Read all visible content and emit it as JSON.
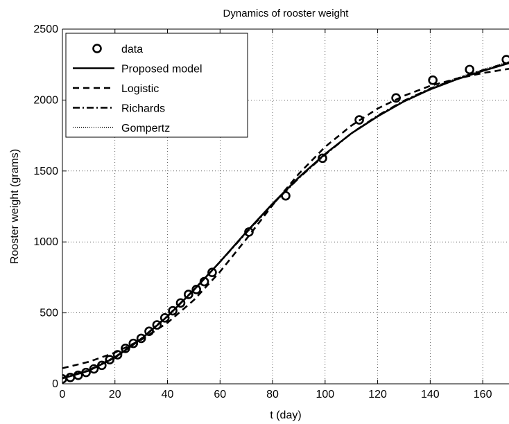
{
  "chart_data": {
    "type": "line",
    "title": "Dynamics of rooster weight",
    "xlabel": "t (day)",
    "ylabel": "Rooster weight (grams)",
    "xlim": [
      0,
      170
    ],
    "ylim": [
      0,
      2500
    ],
    "xticks": [
      0,
      20,
      40,
      60,
      80,
      100,
      120,
      140,
      160
    ],
    "yticks": [
      0,
      500,
      1000,
      1500,
      2000,
      2500
    ],
    "grid": true,
    "legend_position": "top-left",
    "series": [
      {
        "name": "data",
        "style": "markers-circle",
        "x": [
          0,
          3,
          6,
          9,
          12,
          15,
          18,
          21,
          24,
          27,
          30,
          33,
          36,
          39,
          42,
          45,
          48,
          51,
          54,
          57,
          71,
          85,
          99,
          113,
          127,
          141,
          155,
          169
        ],
        "y": [
          35,
          45,
          60,
          80,
          105,
          130,
          170,
          205,
          250,
          285,
          320,
          370,
          415,
          465,
          515,
          570,
          630,
          665,
          720,
          785,
          1070,
          1325,
          1590,
          1860,
          2015,
          2140,
          2215,
          2285
        ]
      },
      {
        "name": "Proposed model",
        "style": "solid",
        "x": [
          0,
          10,
          20,
          30,
          40,
          50,
          60,
          70,
          80,
          90,
          100,
          110,
          120,
          130,
          140,
          150,
          160,
          170
        ],
        "y": [
          38,
          92,
          185,
          315,
          475,
          660,
          860,
          1070,
          1270,
          1455,
          1620,
          1765,
          1885,
          1990,
          2075,
          2145,
          2205,
          2260
        ]
      },
      {
        "name": "Logistic",
        "style": "dashed",
        "x": [
          0,
          10,
          20,
          30,
          40,
          50,
          60,
          70,
          80,
          90,
          100,
          110,
          120,
          130,
          140,
          150,
          160,
          170
        ],
        "y": [
          110,
          155,
          220,
          310,
          430,
          590,
          790,
          1020,
          1260,
          1480,
          1670,
          1820,
          1940,
          2030,
          2100,
          2150,
          2190,
          2220
        ]
      },
      {
        "name": "Richards",
        "style": "dashdot",
        "x": [
          0,
          10,
          20,
          30,
          40,
          50,
          60,
          70,
          80,
          90,
          100,
          110,
          120,
          130,
          140,
          150,
          160,
          170
        ],
        "y": [
          42,
          95,
          188,
          318,
          478,
          662,
          860,
          1065,
          1265,
          1450,
          1615,
          1765,
          1890,
          1995,
          2080,
          2150,
          2210,
          2265
        ]
      },
      {
        "name": "Gompertz",
        "style": "dotted",
        "x": [
          0,
          10,
          20,
          30,
          40,
          50,
          60,
          70,
          80,
          90,
          100,
          110,
          120,
          130,
          140,
          150,
          160,
          170
        ],
        "y": [
          45,
          100,
          192,
          320,
          480,
          663,
          860,
          1063,
          1262,
          1448,
          1615,
          1765,
          1890,
          1995,
          2082,
          2155,
          2215,
          2270
        ]
      }
    ]
  }
}
